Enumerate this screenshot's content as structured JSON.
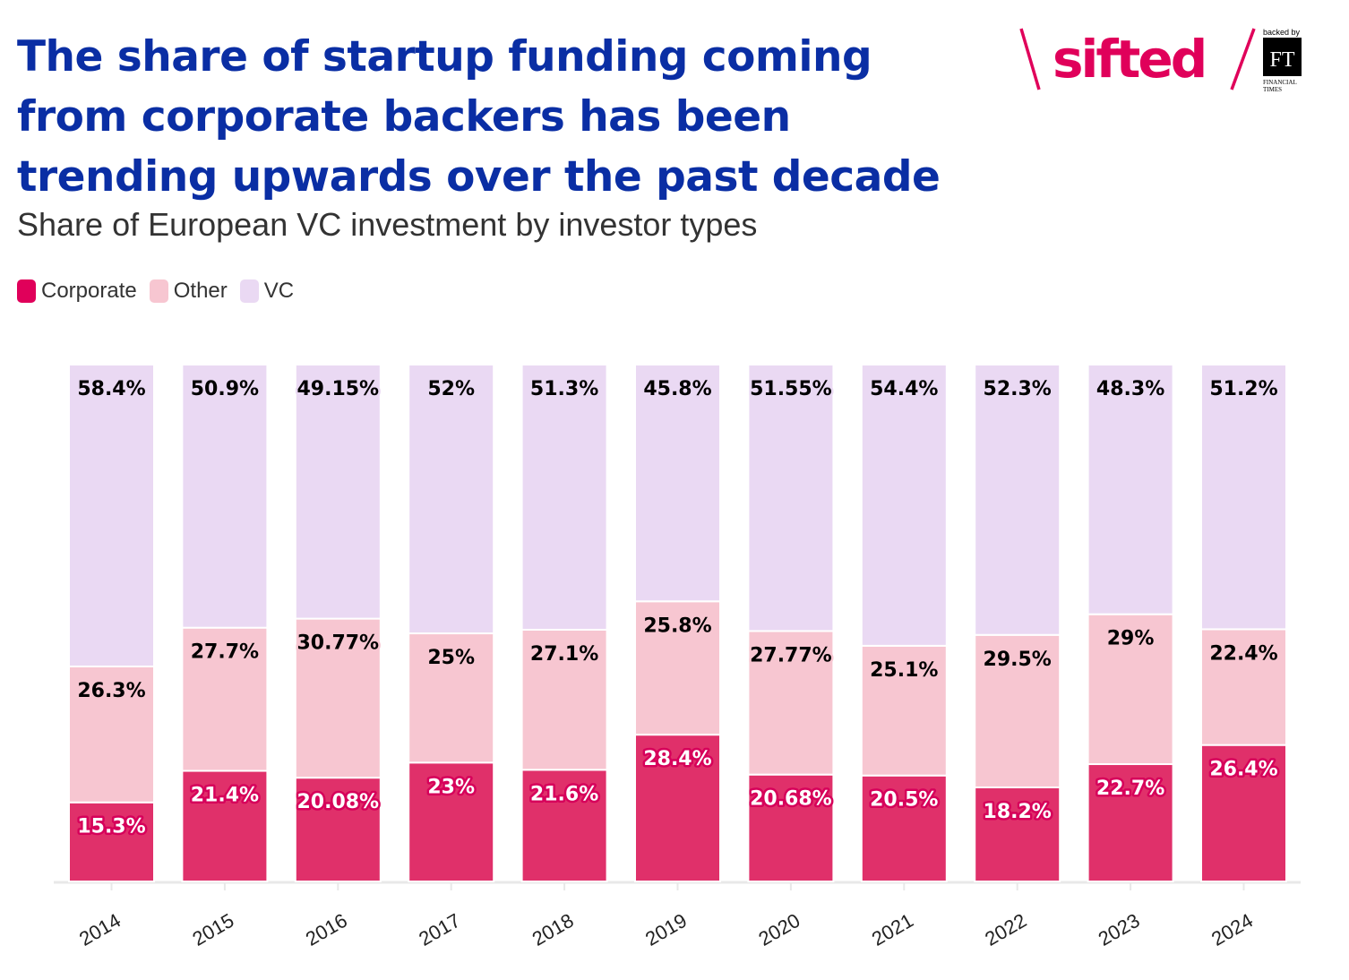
{
  "header": {
    "title": "The share of startup funding coming from corporate backers has been trending upwards over the past decade",
    "subtitle": "Share of European VC investment by investor types",
    "logo": {
      "brand": "sifted",
      "backed_by": "backed by",
      "ft": "FT",
      "ft_name_1": "FINANCIAL",
      "ft_name_2": "TIMES"
    }
  },
  "colors": {
    "title": "#0a2ea4",
    "corporate": "#e0306a",
    "other": "#f7c6d1",
    "vc": "#ead9f3",
    "brand": "#e0005a"
  },
  "chart_data": {
    "type": "bar",
    "stacked": true,
    "normalized": true,
    "title": "Share of European VC investment by investor types",
    "xlabel": "",
    "ylabel": "",
    "ylim": [
      0,
      100
    ],
    "legend_position": "top-left",
    "categories": [
      "2014",
      "2015",
      "2016",
      "2017",
      "2018",
      "2019",
      "2020",
      "2021",
      "2022",
      "2023",
      "2024"
    ],
    "series": [
      {
        "name": "Corporate",
        "color": "#e0306a",
        "values": [
          15.3,
          21.4,
          20.08,
          23,
          21.6,
          28.4,
          20.68,
          20.5,
          18.2,
          22.7,
          26.4
        ],
        "labels": [
          "15.3%",
          "21.4%",
          "20.08%",
          "23%",
          "21.6%",
          "28.4%",
          "20.68%",
          "20.5%",
          "18.2%",
          "22.7%",
          "26.4%"
        ]
      },
      {
        "name": "Other",
        "color": "#f7c6d1",
        "values": [
          26.3,
          27.7,
          30.77,
          25,
          27.1,
          25.8,
          27.77,
          25.1,
          29.5,
          29,
          22.4
        ],
        "labels": [
          "26.3%",
          "27.7%",
          "30.77%",
          "25%",
          "27.1%",
          "25.8%",
          "27.77%",
          "25.1%",
          "29.5%",
          "29%",
          "22.4%"
        ]
      },
      {
        "name": "VC",
        "color": "#ead9f3",
        "values": [
          58.4,
          50.9,
          49.15,
          52,
          51.3,
          45.8,
          51.55,
          54.4,
          52.3,
          48.3,
          51.2
        ],
        "labels": [
          "58.4%",
          "50.9%",
          "49.15%",
          "52%",
          "51.3%",
          "45.8%",
          "51.55%",
          "54.4%",
          "52.3%",
          "48.3%",
          "51.2%"
        ]
      }
    ]
  }
}
